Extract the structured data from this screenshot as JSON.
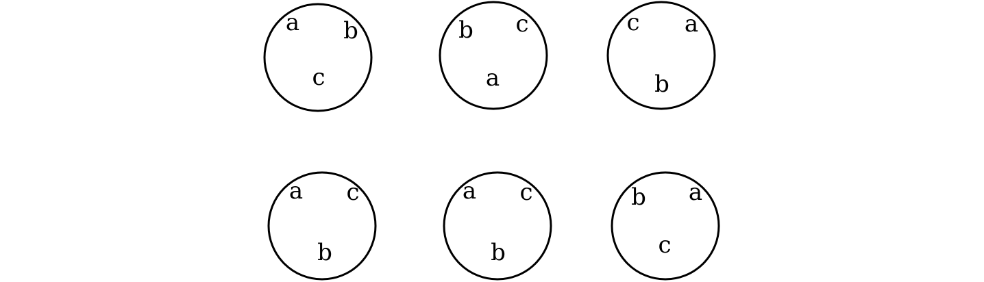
{
  "circles": [
    {
      "labels": [
        "a",
        "b",
        "c"
      ]
    },
    {
      "labels": [
        "b",
        "c",
        "a"
      ]
    },
    {
      "labels": [
        "c",
        "a",
        "b"
      ]
    },
    {
      "labels": [
        "a",
        "c",
        "b"
      ]
    },
    {
      "labels": [
        "a",
        "c",
        "b"
      ]
    },
    {
      "labels": [
        "b",
        "a",
        "c"
      ]
    }
  ]
}
